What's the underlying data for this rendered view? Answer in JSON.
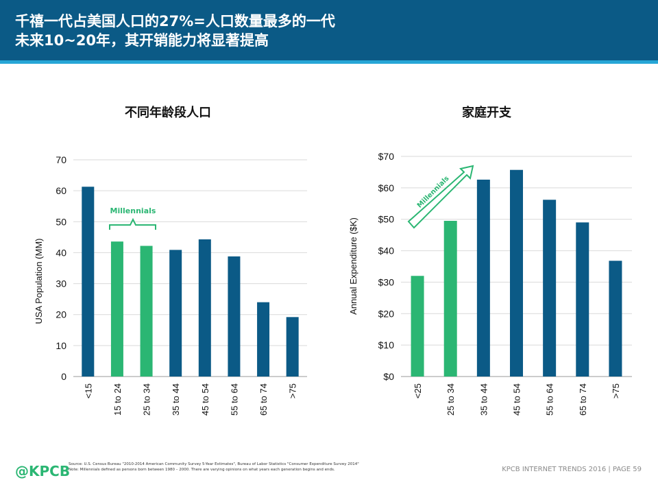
{
  "header": {
    "line1": "千禧一代占美国人口的27%=人口数量最多的一代",
    "line2": "未来10~20年，其开销能力将显著提高"
  },
  "colors": {
    "header_bg": "#0b5a86",
    "stripe": "#27a6d6",
    "bar_blue": "#0b5a86",
    "bar_green": "#2bb673",
    "green_text": "#2bb673"
  },
  "chart_data": [
    {
      "type": "bar",
      "title": "不同年龄段人口",
      "ylabel": "USA Population (MM)",
      "categories": [
        "<15",
        "15 to 24",
        "25 to 34",
        "35 to 44",
        "45 to 54",
        "55 to 64",
        "65 to 74",
        ">75"
      ],
      "values": [
        61.3,
        43.6,
        42.2,
        40.9,
        44.3,
        38.8,
        24.0,
        19.2
      ],
      "highlight": [
        false,
        true,
        true,
        false,
        false,
        false,
        false,
        false
      ],
      "ylim": [
        0,
        70
      ],
      "yticks": [
        0,
        10,
        20,
        30,
        40,
        50,
        60,
        70
      ],
      "grid": true,
      "annotation": "Millennials"
    },
    {
      "type": "bar",
      "title": "家庭开支",
      "ylabel": "Annual Expenditure ($K)",
      "categories": [
        "<25",
        "25 to 34",
        "35 to 44",
        "45 to 54",
        "55 to 64",
        "65 to 74",
        ">75"
      ],
      "values": [
        32.0,
        49.5,
        62.6,
        65.7,
        56.2,
        49.0,
        36.8
      ],
      "highlight": [
        true,
        true,
        false,
        false,
        false,
        false,
        false
      ],
      "ylim": [
        0,
        70
      ],
      "yticks": [
        "$0",
        "$10",
        "$20",
        "$30",
        "$40",
        "$50",
        "$60",
        "$70"
      ],
      "grid": true,
      "annotation": "Millennials"
    }
  ],
  "footer": {
    "logo": "@KPCB",
    "source": "Source: U.S. Census Bureau \"2010-2014 American Community Survey 5-Year Estimates\", Bureau of Labor Statistics \"Consumer Expenditure Survey 2014\"",
    "note": "Note: Millennials defined as persons born between 1980 – 2000. There are varying opinions on what years each generation begins and ends.",
    "page": "KPCB INTERNET TRENDS 2016  |  PAGE 59"
  }
}
